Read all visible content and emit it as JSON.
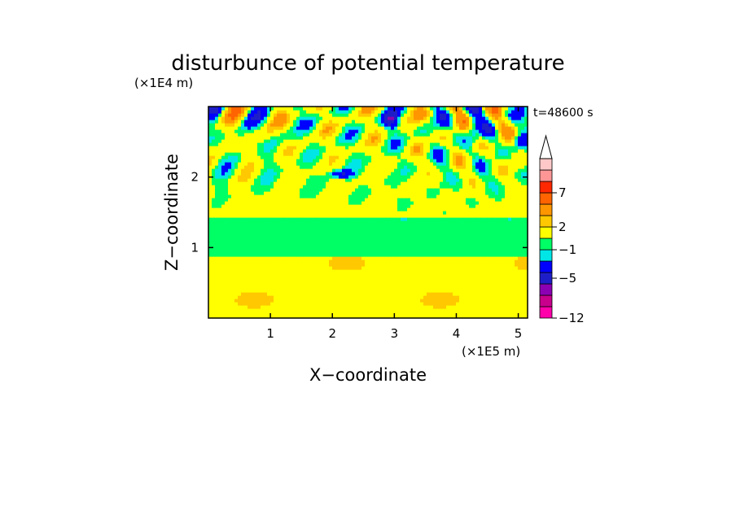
{
  "chart_data": {
    "type": "heatmap",
    "title": "disturbunce of potential temperature",
    "time_label": "t=48600 s",
    "xlabel": "X−coordinate",
    "ylabel": "Z−coordinate",
    "x_unit": "(×1E5 m)",
    "y_unit": "(×1E4 m)",
    "xlim": [
      0,
      5.15
    ],
    "ylim": [
      0,
      3.0
    ],
    "x_ticks": [
      1,
      2,
      3,
      4,
      5
    ],
    "x_tick_labels": [
      "1",
      "2",
      "3",
      "4",
      "5"
    ],
    "y_ticks": [
      1,
      2
    ],
    "y_tick_labels": [
      "1",
      "2"
    ],
    "colorbar": {
      "levels_colors": [
        "#ff00aa",
        "#c8008c",
        "#8c00b4",
        "#1e1ec8",
        "#0000ff",
        "#00e6e6",
        "#00ff64",
        "#ffff00",
        "#ffc800",
        "#ff9600",
        "#ff6400",
        "#ff2800",
        "#ff9696",
        "#ffc8c8"
      ],
      "extend_top": true,
      "tick_labels": [
        {
          "value": 7,
          "label": "7"
        },
        {
          "value": 2,
          "label": "2"
        },
        {
          "value": -1,
          "label": "−1"
        },
        {
          "value": -5,
          "label": "−5"
        },
        {
          "value": -12,
          "label": "−12"
        }
      ]
    },
    "field_summary": [
      {
        "z_range": [
          0.0,
          0.1
        ],
        "dominant_value": 1,
        "description": "near-surface layer"
      },
      {
        "z_range": [
          0.1,
          0.9
        ],
        "dominant_value": 1.5,
        "description": "yellow/orange band"
      },
      {
        "z_range": [
          0.9,
          1.5
        ],
        "dominant_value": -0.5,
        "description": "green band"
      },
      {
        "z_range": [
          1.5,
          3.0
        ],
        "dominant_value": 0,
        "description": "wave pattern with strong +/- anomalies"
      }
    ]
  }
}
